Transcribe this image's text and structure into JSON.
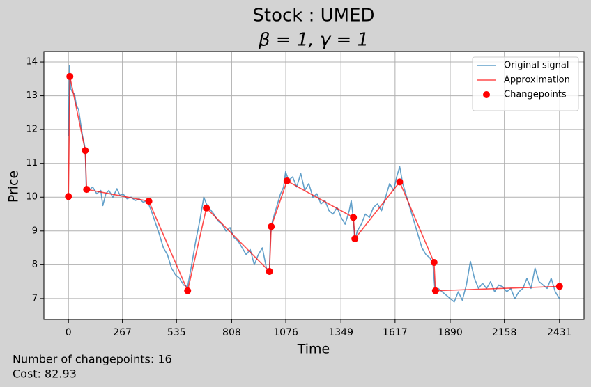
{
  "chart_data": {
    "type": "line",
    "title": "Stock : UMED",
    "subtitle": "β = 1, γ = 1",
    "x_label": "Time",
    "y_label": "Price",
    "annotations": [
      "Number of changepoints: 16",
      "Cost: 82.93"
    ],
    "xlim": [
      -121.55,
      2552.55
    ],
    "ylim": [
      6.38,
      14.31
    ],
    "xticks": [
      0,
      267,
      535,
      808,
      1076,
      1349,
      1617,
      1890,
      2158,
      2431
    ],
    "yticks": [
      7,
      8,
      9,
      10,
      11,
      12,
      13,
      14
    ],
    "grid": true,
    "legend": "upper right",
    "series": [
      {
        "name": "Original signal",
        "type": "line",
        "color": "#1f77b4",
        "x": [
          0,
          5,
          12,
          20,
          30,
          40,
          50,
          60,
          70,
          78,
          83,
          88,
          100,
          120,
          140,
          160,
          170,
          185,
          200,
          220,
          240,
          255,
          270,
          290,
          310,
          330,
          350,
          370,
          390,
          410,
          430,
          450,
          470,
          490,
          510,
          530,
          550,
          570,
          590,
          610,
          630,
          650,
          670,
          683,
          700,
          720,
          740,
          760,
          780,
          800,
          820,
          840,
          860,
          880,
          900,
          920,
          940,
          960,
          980,
          995,
          1000,
          1010,
          1030,
          1050,
          1065,
          1075,
          1090,
          1110,
          1130,
          1150,
          1170,
          1190,
          1210,
          1230,
          1250,
          1270,
          1290,
          1310,
          1330,
          1350,
          1370,
          1390,
          1400,
          1410,
          1418,
          1430,
          1450,
          1470,
          1490,
          1510,
          1530,
          1550,
          1570,
          1590,
          1610,
          1625,
          1640,
          1655,
          1670,
          1690,
          1710,
          1730,
          1750,
          1770,
          1790,
          1805,
          1815,
          1830,
          1850,
          1870,
          1890,
          1910,
          1930,
          1950,
          1970,
          1990,
          2010,
          2030,
          2050,
          2070,
          2090,
          2110,
          2130,
          2150,
          2170,
          2190,
          2210,
          2230,
          2250,
          2270,
          2290,
          2310,
          2330,
          2350,
          2370,
          2390,
          2410,
          2431
        ],
        "values": [
          11.8,
          13.9,
          13.2,
          13.1,
          13.05,
          12.7,
          12.6,
          12.2,
          11.8,
          11.6,
          11.4,
          10.3,
          10.2,
          10.3,
          10.1,
          10.2,
          9.75,
          10.1,
          10.2,
          10.0,
          10.25,
          10.05,
          10.1,
          9.95,
          10.0,
          9.9,
          9.95,
          9.85,
          9.9,
          9.6,
          9.25,
          8.9,
          8.5,
          8.3,
          7.9,
          7.7,
          7.6,
          7.4,
          7.35,
          8.0,
          8.7,
          9.3,
          10.0,
          9.8,
          9.65,
          9.5,
          9.3,
          9.2,
          9.0,
          9.1,
          8.8,
          8.7,
          8.5,
          8.3,
          8.45,
          8.0,
          8.3,
          8.5,
          7.9,
          7.8,
          8.9,
          9.3,
          9.7,
          10.1,
          10.3,
          10.75,
          10.5,
          10.6,
          10.3,
          10.7,
          10.2,
          10.4,
          10.0,
          10.1,
          9.8,
          9.9,
          9.6,
          9.5,
          9.7,
          9.4,
          9.2,
          9.6,
          9.9,
          9.4,
          8.7,
          9.0,
          9.2,
          9.5,
          9.4,
          9.7,
          9.8,
          9.6,
          10.0,
          10.4,
          10.2,
          10.6,
          10.9,
          10.4,
          10.1,
          9.7,
          9.3,
          8.9,
          8.5,
          8.3,
          8.2,
          8.0,
          7.2,
          7.3,
          7.2,
          7.1,
          7.0,
          6.9,
          7.2,
          6.95,
          7.4,
          8.1,
          7.6,
          7.3,
          7.45,
          7.3,
          7.5,
          7.2,
          7.4,
          7.35,
          7.2,
          7.3,
          7.0,
          7.2,
          7.3,
          7.6,
          7.3,
          7.9,
          7.5,
          7.4,
          7.3,
          7.6,
          7.2,
          7.0
        ]
      },
      {
        "name": "Approximation",
        "type": "line",
        "color": "#ff0000",
        "x": [
          0,
          7,
          83,
          90,
          398,
          590,
          683,
          995,
          1004,
          1082,
          1411,
          1418,
          1640,
          1810,
          1817,
          2431
        ],
        "values": [
          10.02,
          13.57,
          11.38,
          10.23,
          9.88,
          7.23,
          9.68,
          7.8,
          9.13,
          10.48,
          9.4,
          8.77,
          10.45,
          8.07,
          7.23,
          7.36
        ]
      },
      {
        "name": "Changepoints",
        "type": "scatter",
        "color": "#ff0000",
        "x": [
          0,
          7,
          83,
          90,
          398,
          590,
          683,
          995,
          1004,
          1082,
          1411,
          1418,
          1640,
          1810,
          1817,
          2431
        ],
        "values": [
          10.02,
          13.57,
          11.38,
          10.23,
          9.88,
          7.23,
          9.68,
          7.8,
          9.13,
          10.48,
          9.4,
          8.77,
          10.45,
          8.07,
          7.23,
          7.36
        ]
      }
    ]
  }
}
